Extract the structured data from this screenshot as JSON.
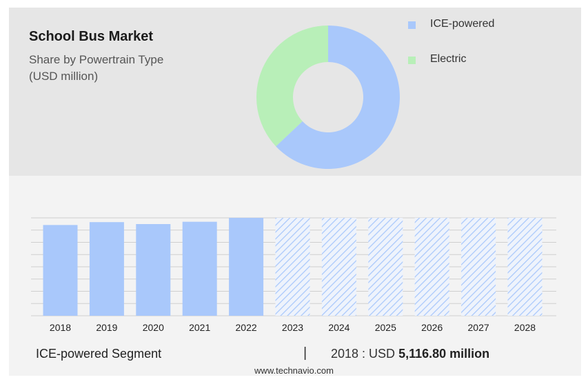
{
  "header": {
    "title": "School Bus Market",
    "subtitle_line1": "Share by Powertrain Type",
    "subtitle_line2": "(USD million)"
  },
  "legend": {
    "items": [
      {
        "label": "ICE-powered",
        "color": "#a9c8fb"
      },
      {
        "label": "Electric",
        "color": "#b8efb8"
      }
    ]
  },
  "footer": {
    "segment": "ICE-powered Segment",
    "separator": "|",
    "value_prefix": "2018 : USD",
    "value_bold": "5,116.80 million"
  },
  "source": "www.technavio.com",
  "chart_data": [
    {
      "type": "pie",
      "style": "donut",
      "categories": [
        "ICE-powered",
        "Electric"
      ],
      "values": [
        63,
        37
      ],
      "colors": [
        "#a9c8fb",
        "#b8efb8"
      ]
    },
    {
      "type": "bar",
      "categories": [
        "2018",
        "2019",
        "2020",
        "2021",
        "2022",
        "2023",
        "2024",
        "2025",
        "2026",
        "2027",
        "2028"
      ],
      "values": [
        5116.8,
        5280,
        5170,
        5300,
        5520,
        5520,
        5520,
        5520,
        5520,
        5520,
        5520
      ],
      "forecast_from": "2023",
      "ylim": [
        0,
        5520
      ],
      "grid": true,
      "color": "#a9c8fb"
    }
  ]
}
